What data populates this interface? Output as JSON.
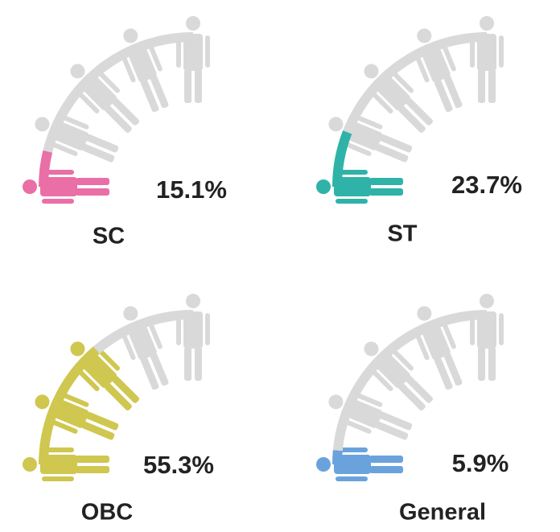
{
  "chart_data": {
    "type": "pictorial",
    "categories": [
      "SC",
      "ST",
      "OBC",
      "General"
    ],
    "values": [
      15.1,
      23.7,
      55.3,
      5.9
    ],
    "value_labels": [
      "15.1%",
      "23.7%",
      "55.3%",
      "5.9%"
    ],
    "colors": [
      "#e96fa6",
      "#2fb3a8",
      "#cfc74f",
      "#6aa3dc"
    ],
    "base_color": "#d9d9d9",
    "ylim": [
      0,
      100
    ]
  }
}
